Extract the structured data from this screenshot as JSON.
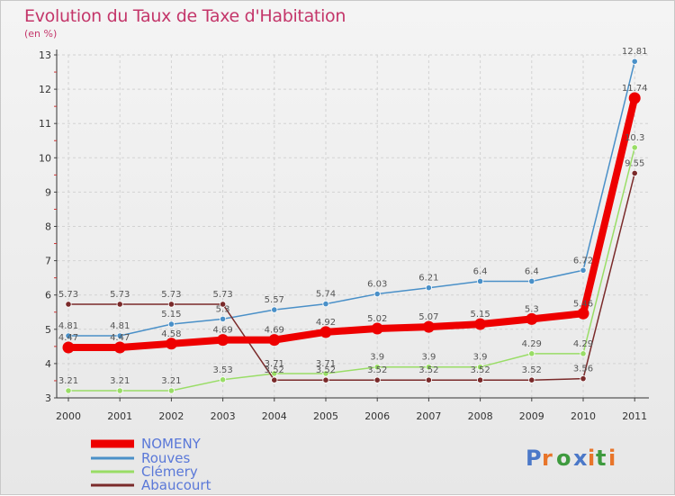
{
  "title": "Evolution du Taux de Taxe d'Habitation",
  "unit_label": "(en %)",
  "logo_text": "Proxiti",
  "chart_data": {
    "type": "line",
    "title": "Evolution du Taux de Taxe d'Habitation",
    "ylabel": "(en %)",
    "xlabel": "",
    "x": [
      "2000",
      "2001",
      "2002",
      "2003",
      "2004",
      "2005",
      "2006",
      "2007",
      "2008",
      "2009",
      "2010",
      "2011"
    ],
    "ylim": [
      3,
      13
    ],
    "yticks": [
      "3",
      "4",
      "5",
      "6",
      "7",
      "8",
      "9",
      "10",
      "11",
      "12",
      "13"
    ],
    "grid": true,
    "legend_position": "bottom-left",
    "series": [
      {
        "name": "NOMENY",
        "color": "#ee0000",
        "values": [
          4.47,
          4.47,
          4.58,
          4.69,
          4.69,
          4.92,
          5.02,
          5.07,
          5.15,
          5.3,
          5.46,
          11.74
        ],
        "labels": [
          "4.47",
          "4.47",
          "4.58",
          "4.69",
          "4.69",
          "4.92",
          "5.02",
          "5.07",
          "5.15",
          "5.3",
          "5.46",
          "11.74"
        ]
      },
      {
        "name": "Rouves",
        "color": "#4a90c8",
        "values": [
          4.81,
          4.81,
          5.15,
          5.3,
          5.57,
          5.74,
          6.03,
          6.21,
          6.4,
          6.4,
          6.72,
          12.81
        ],
        "labels": [
          "4.81",
          "4.81",
          "5.15",
          "5.3",
          "5.57",
          "5.74",
          "6.03",
          "6.21",
          "6.4",
          "6.4",
          "6.72",
          "12.81"
        ]
      },
      {
        "name": "Clémery",
        "color": "#99dd66",
        "values": [
          3.21,
          3.21,
          3.21,
          3.53,
          3.71,
          3.71,
          3.9,
          3.9,
          3.9,
          4.29,
          4.29,
          10.3
        ],
        "labels": [
          "3.21",
          "3.21",
          "3.21",
          "3.53",
          "3.71",
          "3.71",
          "3.9",
          "3.9",
          "3.9",
          "4.29",
          "4.29",
          "10.3"
        ]
      },
      {
        "name": "Abaucourt",
        "color": "#7a2a2a",
        "values": [
          5.73,
          5.73,
          5.73,
          5.73,
          3.52,
          3.52,
          3.52,
          3.52,
          3.52,
          3.52,
          3.56,
          9.55
        ],
        "labels": [
          "5.73",
          "5.73",
          "5.73",
          "5.73",
          "3.52",
          "3.52",
          "3.52",
          "3.52",
          "3.52",
          "3.52",
          "3.56",
          "9.55"
        ]
      }
    ]
  }
}
